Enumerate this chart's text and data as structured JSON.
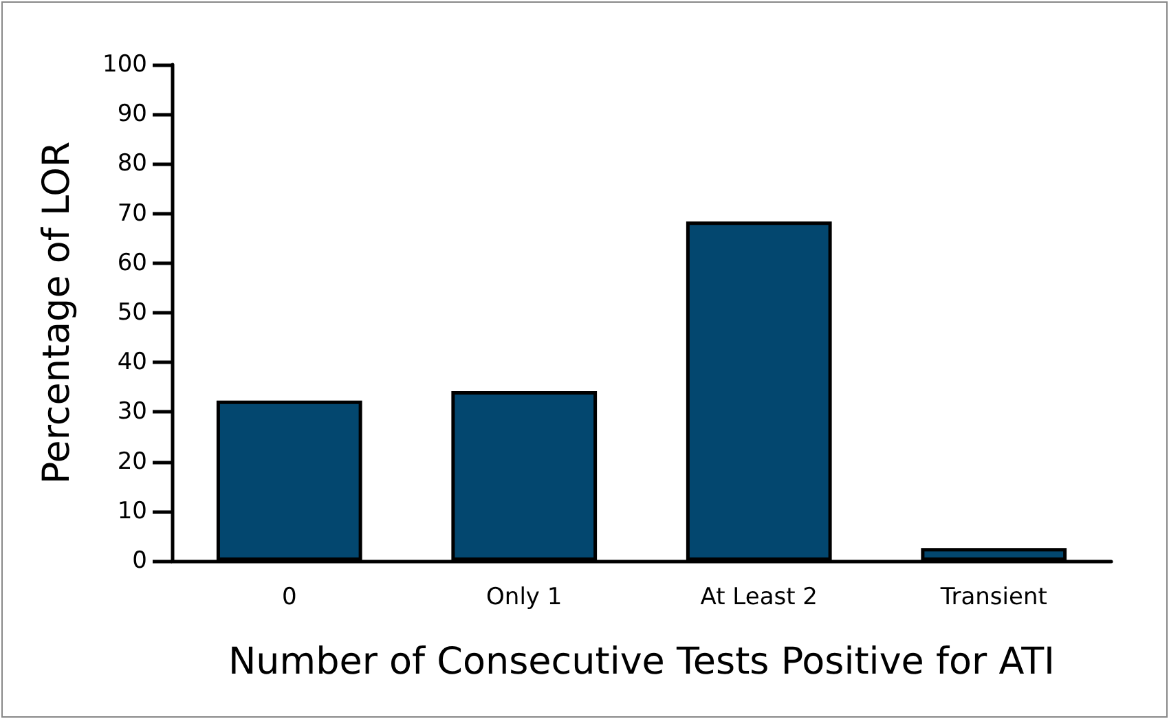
{
  "chart_data": {
    "type": "bar",
    "xlabel": "Number of Consecutive Tests Positive for ATI",
    "ylabel": "Percentage of LOR",
    "categories": [
      "0",
      "Only 1",
      "At Least 2",
      "Transient"
    ],
    "values": [
      32.3,
      34.2,
      68.4,
      2.6
    ],
    "color": "#03476f",
    "ylim": [
      0,
      100
    ],
    "yticks": [
      0,
      10,
      20,
      30,
      40,
      50,
      60,
      70,
      80,
      90,
      100
    ],
    "grid": false
  }
}
